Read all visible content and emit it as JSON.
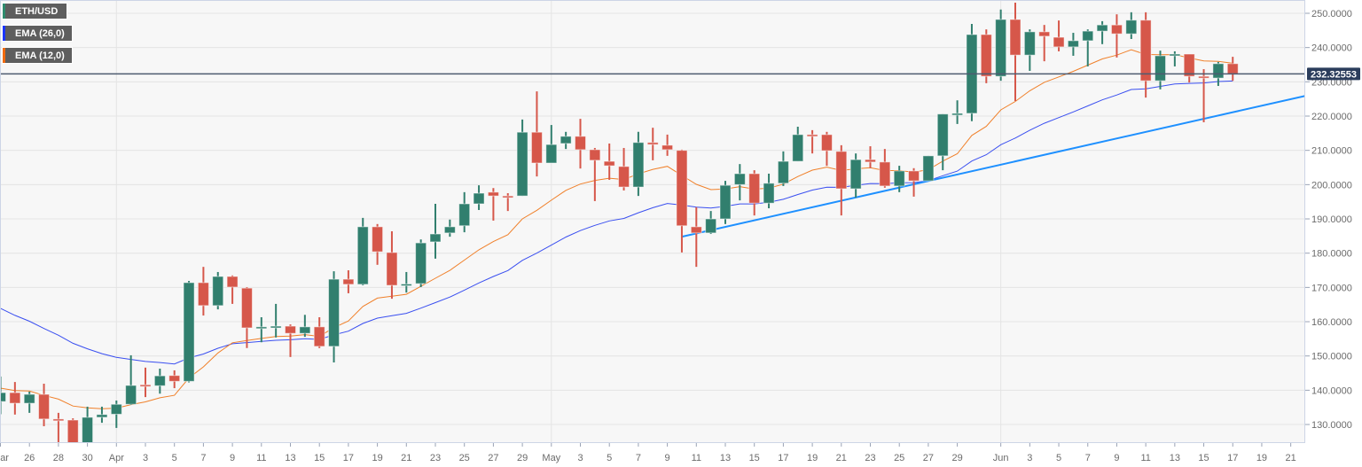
{
  "legend": [
    {
      "label": "ETH/USD",
      "color": "#2e8b6e"
    },
    {
      "label": "EMA (26,0)",
      "color": "#1a35ff"
    },
    {
      "label": "EMA (12,0)",
      "color": "#f06a10"
    }
  ],
  "current_price_label": "232.32553",
  "colors": {
    "up": "#317f6e",
    "down": "#d6574a",
    "ema26": "#3a4ff0",
    "ema12": "#f0802a",
    "trendline": "#1e90ff",
    "price_line": "#4d5b70",
    "price_tag": "#2b3d5c",
    "background": "#f7f7f7",
    "grid": "#e4e4e4"
  },
  "chart_data": {
    "type": "candlestick",
    "title": "",
    "symbol": "ETH/USD",
    "ylim": [
      124.6,
      253.9
    ],
    "y_ticks": [
      "130.0000",
      "140.0000",
      "150.0000",
      "160.0000",
      "170.0000",
      "180.0000",
      "190.0000",
      "200.0000",
      "210.0000",
      "220.0000",
      "230.0000",
      "240.0000",
      "250.0000"
    ],
    "x_ticks": [
      {
        "label": "Mar",
        "date": "Mar 24"
      },
      {
        "label": "26",
        "date": "Mar 26"
      },
      {
        "label": "28",
        "date": "Mar 28"
      },
      {
        "label": "30",
        "date": "Mar 30"
      },
      {
        "label": "Apr",
        "date": "Apr 1"
      },
      {
        "label": "3",
        "date": "Apr 3"
      },
      {
        "label": "5",
        "date": "Apr 5"
      },
      {
        "label": "7",
        "date": "Apr 7"
      },
      {
        "label": "9",
        "date": "Apr 9"
      },
      {
        "label": "11",
        "date": "Apr 11"
      },
      {
        "label": "13",
        "date": "Apr 13"
      },
      {
        "label": "15",
        "date": "Apr 15"
      },
      {
        "label": "17",
        "date": "Apr 17"
      },
      {
        "label": "19",
        "date": "Apr 19"
      },
      {
        "label": "21",
        "date": "Apr 21"
      },
      {
        "label": "23",
        "date": "Apr 23"
      },
      {
        "label": "25",
        "date": "Apr 25"
      },
      {
        "label": "27",
        "date": "Apr 27"
      },
      {
        "label": "29",
        "date": "Apr 29"
      },
      {
        "label": "May",
        "date": "May 1"
      },
      {
        "label": "3",
        "date": "May 3"
      },
      {
        "label": "5",
        "date": "May 5"
      },
      {
        "label": "7",
        "date": "May 7"
      },
      {
        "label": "9",
        "date": "May 9"
      },
      {
        "label": "11",
        "date": "May 11"
      },
      {
        "label": "13",
        "date": "May 13"
      },
      {
        "label": "15",
        "date": "May 15"
      },
      {
        "label": "17",
        "date": "May 17"
      },
      {
        "label": "19",
        "date": "May 19"
      },
      {
        "label": "21",
        "date": "May 21"
      },
      {
        "label": "23",
        "date": "May 23"
      },
      {
        "label": "25",
        "date": "May 25"
      },
      {
        "label": "27",
        "date": "May 27"
      },
      {
        "label": "29",
        "date": "May 29"
      },
      {
        "label": "Jun",
        "date": "Jun 1"
      },
      {
        "label": "3",
        "date": "Jun 3"
      },
      {
        "label": "5",
        "date": "Jun 5"
      },
      {
        "label": "7",
        "date": "Jun 7"
      },
      {
        "label": "9",
        "date": "Jun 9"
      },
      {
        "label": "11",
        "date": "Jun 11"
      },
      {
        "label": "13",
        "date": "Jun 13"
      },
      {
        "label": "15",
        "date": "Jun 15"
      },
      {
        "label": "17",
        "date": "Jun 17"
      },
      {
        "label": "19",
        "date": "Jun 19"
      },
      {
        "label": "21",
        "date": "Jun 21"
      }
    ],
    "month_gridlines": [
      "Apr 1",
      "May 1",
      "Jun 1"
    ],
    "candles_fields": [
      "date",
      "open",
      "high",
      "low",
      "close"
    ],
    "candles": [
      [
        "Mar 24",
        136.7,
        144,
        133,
        139.3
      ],
      [
        "Mar 25",
        139.3,
        142.4,
        132.9,
        136.2
      ],
      [
        "Mar 26",
        136.2,
        139.6,
        133.4,
        138.8
      ],
      [
        "Mar 27",
        138.8,
        141.9,
        129.5,
        131.6
      ],
      [
        "Mar 28",
        131.6,
        133.4,
        124.8,
        131.4
      ],
      [
        "Mar 29",
        131.3,
        131.8,
        123.8,
        124.3
      ],
      [
        "Mar 30",
        124.3,
        135.2,
        124.0,
        132.1
      ],
      [
        "Mar 31",
        132.1,
        135.2,
        130.5,
        132.9
      ],
      [
        "Apr 1",
        133.0,
        137,
        129,
        135.9
      ],
      [
        "Apr 2",
        135.9,
        150.2,
        135.7,
        141.4
      ],
      [
        "Apr 3",
        141.6,
        146.6,
        138,
        141.1
      ],
      [
        "Apr 4",
        141.3,
        146.3,
        139,
        144.2
      ],
      [
        "Apr 5",
        144.3,
        145.8,
        140.6,
        142.6
      ],
      [
        "Apr 6",
        142.6,
        171.9,
        142.3,
        171.4
      ],
      [
        "Apr 7",
        171.4,
        176.0,
        161.8,
        164.7
      ],
      [
        "Apr 8",
        164.7,
        174.5,
        163.6,
        173.2
      ],
      [
        "Apr 9",
        173.2,
        173.5,
        165.2,
        170.1
      ],
      [
        "Apr 10",
        169.8,
        170.1,
        152.3,
        158.2
      ],
      [
        "Apr 11",
        158.2,
        161.3,
        154,
        158.5
      ],
      [
        "Apr 12",
        158.5,
        165.2,
        155.4,
        158.7
      ],
      [
        "Apr 13",
        158.7,
        159.2,
        149.7,
        156.6
      ],
      [
        "Apr 14",
        156.6,
        162,
        155.6,
        158.5
      ],
      [
        "Apr 15",
        158.5,
        161.3,
        152.3,
        152.8
      ],
      [
        "Apr 16",
        152.8,
        174.7,
        148.1,
        172.4
      ],
      [
        "Apr 17",
        172.4,
        175,
        168.3,
        170.9
      ],
      [
        "Apr 18",
        170.9,
        190.3,
        170.6,
        187.7
      ],
      [
        "Apr 19",
        187.7,
        188.5,
        176.6,
        180.4
      ],
      [
        "Apr 20",
        180.2,
        186.4,
        166.7,
        170.6
      ],
      [
        "Apr 21",
        170.6,
        174.5,
        168.5,
        171.0
      ],
      [
        "Apr 22",
        171.1,
        184,
        170.1,
        183.0
      ],
      [
        "Apr 23",
        183.3,
        194.4,
        178.4,
        185.6
      ],
      [
        "Apr 24",
        185.9,
        189.8,
        184.8,
        187.7
      ],
      [
        "Apr 25",
        188,
        197.8,
        186.1,
        194.4
      ],
      [
        "Apr 26",
        194.4,
        199.8,
        192.6,
        197.5
      ],
      [
        "Apr 27",
        197.8,
        199,
        189.5,
        196.7
      ],
      [
        "Apr 28",
        196.7,
        197.5,
        192.3,
        196.5
      ],
      [
        "Apr 29",
        196.7,
        219,
        196.7,
        215.3
      ],
      [
        "Apr 30",
        215.3,
        227.2,
        202.4,
        206.3
      ],
      [
        "May 1",
        206.3,
        217.4,
        206.3,
        211.7
      ],
      [
        "May 2",
        212,
        215.4,
        210.4,
        214.1
      ],
      [
        "May 3",
        214.1,
        219.2,
        204.7,
        210.2
      ],
      [
        "May 4",
        210.2,
        210.7,
        195.2,
        207.1
      ],
      [
        "May 5",
        206.8,
        212,
        201.4,
        205.5
      ],
      [
        "May 6",
        205.3,
        210.7,
        198.3,
        199.3
      ],
      [
        "May 7",
        199.3,
        215.4,
        196.7,
        212.3
      ],
      [
        "May 8",
        212.3,
        216.6,
        207.1,
        211.7
      ],
      [
        "May 9",
        211.5,
        214.6,
        208.4,
        210.2
      ],
      [
        "May 10",
        210,
        210.2,
        180.2,
        188
      ],
      [
        "May 11",
        187.7,
        193.4,
        176,
        185.9
      ],
      [
        "May 12",
        185.9,
        192.3,
        185.6,
        190
      ],
      [
        "May 13",
        190,
        201.1,
        188.5,
        199.8
      ],
      [
        "May 14",
        200,
        206,
        195.4,
        203.2
      ],
      [
        "May 15",
        203.2,
        204.2,
        191,
        194.6
      ],
      [
        "May 16",
        194.6,
        203.2,
        193.1,
        200.4
      ],
      [
        "May 17",
        200.4,
        209.7,
        199.6,
        206.8
      ],
      [
        "May 18",
        206.8,
        216.9,
        206.8,
        214.6
      ],
      [
        "May 19",
        214.6,
        215.9,
        209.1,
        214.4
      ],
      [
        "May 20",
        214.6,
        215.4,
        205.5,
        209.9
      ],
      [
        "May 21",
        209.7,
        211.5,
        191,
        198.8
      ],
      [
        "May 22",
        198.8,
        209.1,
        196.2,
        207.3
      ],
      [
        "May 23",
        207.3,
        211.2,
        204.8,
        206.6
      ],
      [
        "May 24",
        206.6,
        210.4,
        199.1,
        199.6
      ],
      [
        "May 25",
        199.6,
        205.5,
        197.8,
        204
      ],
      [
        "May 26",
        204,
        204.8,
        196.5,
        201.1
      ],
      [
        "May 27",
        201.1,
        208.4,
        201.1,
        208.4
      ],
      [
        "May 28",
        208.4,
        220.6,
        204.2,
        220.6
      ],
      [
        "May 29",
        220.6,
        224.6,
        217.7,
        220.8
      ],
      [
        "May 30",
        220.8,
        246.9,
        218.5,
        243.8
      ],
      [
        "May 31",
        243.8,
        245.3,
        229.6,
        231.6
      ],
      [
        "Jun 1",
        231.6,
        251.1,
        230.3,
        248.2
      ],
      [
        "Jun 2",
        248.2,
        253.1,
        224.4,
        237.8
      ],
      [
        "Jun 3",
        237.8,
        245.3,
        233.2,
        244.6
      ],
      [
        "Jun 4",
        244.6,
        246.6,
        236,
        243.3
      ],
      [
        "Jun 5",
        243,
        247.9,
        238.9,
        240.2
      ],
      [
        "Jun 6",
        240.2,
        244.3,
        237.6,
        242
      ],
      [
        "Jun 7",
        242,
        245.3,
        234.5,
        244.8
      ],
      [
        "Jun 8",
        244.8,
        247.7,
        241,
        246.6
      ],
      [
        "Jun 9",
        246.6,
        249.7,
        237.1,
        244
      ],
      [
        "Jun 10",
        244,
        250.3,
        242.5,
        248
      ],
      [
        "Jun 11",
        248,
        250.3,
        225.4,
        230.3
      ],
      [
        "Jun 12",
        230.3,
        239.1,
        227.8,
        237.6
      ],
      [
        "Jun 13",
        237.6,
        238.9,
        234.5,
        238.1
      ],
      [
        "Jun 14",
        238.1,
        238.1,
        229.8,
        231.6
      ],
      [
        "Jun 15",
        231.6,
        233.7,
        218.2,
        231.3
      ],
      [
        "Jun 16",
        231.1,
        235.8,
        228.8,
        235.3
      ],
      [
        "Jun 17",
        235.3,
        237.3,
        230.3,
        232.32553
      ]
    ],
    "indicators": [
      {
        "name": "EMA (26,0)",
        "period": 26,
        "first_value": 163.9,
        "color": "#3a4ff0"
      },
      {
        "name": "EMA (12,0)",
        "period": 12,
        "first_value": 140.6,
        "color": "#f0802a"
      }
    ],
    "trendline": {
      "from": {
        "date": "May 10",
        "price": 184.8
      },
      "to": {
        "date": "Jun 22",
        "price": 225.9
      }
    },
    "current_price": 232.32553
  }
}
